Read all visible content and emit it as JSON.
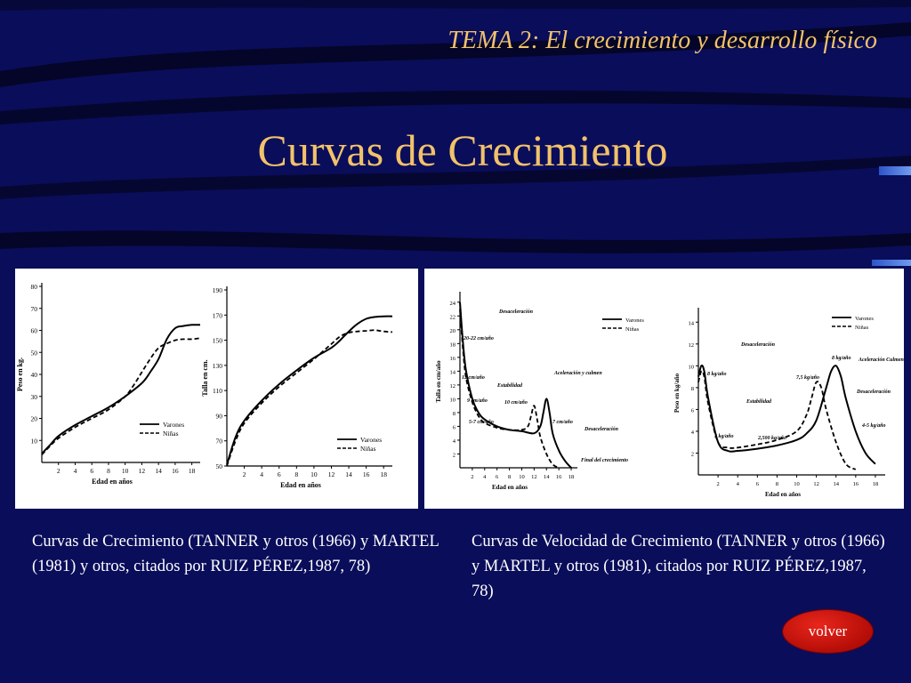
{
  "header": {
    "topic": "TEMA 2: El crecimiento y desarrollo físico",
    "title": "Curvas de Crecimiento"
  },
  "captions": {
    "left": "Curvas de Crecimiento (TANNER y otros (1966) y MARTEL (1981) y otros, citados por RUIZ PÉREZ,1987, 78)",
    "right": "Curvas de Velocidad de Crecimiento (TANNER y otros (1966) y MARTEL y otros (1981), citados por RUIZ PÉREZ,1987, 78)"
  },
  "nav": {
    "back_label": "volver"
  },
  "colors": {
    "background": "#0a0d5a",
    "title": "#f2c26a",
    "button": "#d0140c"
  },
  "chart_data": [
    {
      "type": "line",
      "id": "peso",
      "title": "",
      "xlabel": "Edad en años",
      "ylabel": "Peso en kg.",
      "xlim": [
        0,
        19
      ],
      "ylim": [
        0,
        80
      ],
      "xticks": [
        2,
        4,
        6,
        8,
        10,
        12,
        14,
        16,
        18
      ],
      "yticks": [
        10,
        20,
        30,
        40,
        50,
        60,
        70,
        80
      ],
      "legend": [
        "Varones",
        "Niñas"
      ],
      "annotations": [],
      "series": [
        {
          "name": "Varones",
          "style": "solid",
          "x": [
            0,
            1,
            2,
            4,
            6,
            8,
            10,
            12,
            13,
            14,
            15,
            16,
            17,
            18,
            19
          ],
          "y": [
            4,
            8,
            12,
            17,
            21,
            25,
            30,
            36,
            41,
            47,
            56,
            61,
            62,
            62.5,
            62.5
          ]
        },
        {
          "name": "Niñas",
          "style": "dashed",
          "x": [
            0,
            1,
            2,
            4,
            6,
            8,
            10,
            11,
            12,
            13,
            14,
            15,
            16,
            17,
            18,
            19
          ],
          "y": [
            3.5,
            7.5,
            11,
            16,
            20,
            24,
            30,
            35,
            41,
            47,
            52,
            54,
            55.5,
            56,
            56,
            56.5
          ]
        }
      ]
    },
    {
      "type": "line",
      "id": "talla",
      "title": "",
      "xlabel": "Edad en años",
      "ylabel": "Talla en cm.",
      "xlim": [
        0,
        19
      ],
      "ylim": [
        50,
        190
      ],
      "xticks": [
        2,
        4,
        6,
        8,
        10,
        12,
        14,
        16,
        18
      ],
      "yticks": [
        50,
        70,
        90,
        110,
        130,
        150,
        170,
        190
      ],
      "legend": [
        "Varones",
        "Niñas"
      ],
      "annotations": [],
      "series": [
        {
          "name": "Varones",
          "style": "solid",
          "x": [
            0,
            1,
            2,
            4,
            6,
            8,
            10,
            12,
            13,
            14,
            15,
            16,
            17,
            18,
            19
          ],
          "y": [
            51,
            73,
            86,
            102,
            115,
            126,
            136,
            144,
            150,
            157,
            163,
            167,
            168.5,
            169,
            169
          ]
        },
        {
          "name": "Niñas",
          "style": "dashed",
          "x": [
            0,
            1,
            2,
            4,
            6,
            8,
            10,
            11,
            12,
            13,
            14,
            15,
            16,
            17,
            18,
            19
          ],
          "y": [
            50,
            70,
            84,
            100,
            113,
            124,
            135,
            141,
            147,
            153,
            156,
            157,
            157.5,
            158,
            157,
            156.5
          ]
        }
      ]
    },
    {
      "type": "line",
      "id": "velocidad-talla",
      "title": "",
      "xlabel": "Edad en años",
      "ylabel": "Talla en cm/año",
      "xlim": [
        0,
        19
      ],
      "ylim": [
        0,
        25
      ],
      "xticks": [
        2,
        4,
        6,
        8,
        10,
        12,
        14,
        16,
        18
      ],
      "yticks": [
        2,
        4,
        6,
        8,
        10,
        12,
        14,
        16,
        18,
        20,
        22,
        24
      ],
      "legend": [
        "Varones",
        "Niñas"
      ],
      "annotations": [
        "Desaceleración",
        "20-22 cm/año",
        "12 cm/año",
        "Estabilidad",
        "9 cm/año",
        "10 cm/año",
        "Aceleración y culmen",
        "5-7 cm/año",
        "7 cm/año",
        "Desaceleración",
        "Final del crecimiento"
      ],
      "series": [
        {
          "name": "Varones",
          "style": "solid",
          "x": [
            0,
            0.5,
            1,
            2,
            3,
            4,
            6,
            8,
            10,
            12,
            13,
            13.5,
            14,
            14.5,
            15,
            16,
            17,
            18
          ],
          "y": [
            24,
            18,
            14,
            10,
            8,
            7,
            6,
            5.5,
            5.3,
            5,
            6,
            8,
            10,
            8,
            5,
            2.5,
            1,
            0
          ]
        },
        {
          "name": "Niñas",
          "style": "dashed",
          "x": [
            0,
            0.5,
            1,
            2,
            3,
            4,
            6,
            8,
            10,
            11,
            11.5,
            12,
            12.5,
            13,
            14,
            15,
            16
          ],
          "y": [
            23,
            17,
            13,
            9.5,
            7.5,
            6.5,
            5.8,
            5.5,
            5.5,
            6,
            7.5,
            9,
            7,
            4.5,
            2,
            0.5,
            0
          ]
        }
      ]
    },
    {
      "type": "line",
      "id": "velocidad-peso",
      "title": "",
      "xlabel": "Edad en años",
      "ylabel": "Peso en kg/año",
      "xlim": [
        0,
        19
      ],
      "ylim": [
        0,
        15
      ],
      "xticks": [
        2,
        4,
        6,
        8,
        10,
        12,
        14,
        16,
        18
      ],
      "yticks": [
        2,
        4,
        6,
        8,
        10,
        12,
        14
      ],
      "legend": [
        "Varones",
        "Niñas"
      ],
      "annotations": [
        "Desaceleración",
        "8 kg/año",
        "Estabilidad",
        "3 kg/año",
        "2,500 kg/año",
        "7,5 kg/año",
        "8 kg/año",
        "Aceleración Culmen",
        "Desaceleración",
        "4-5 kg/año"
      ],
      "series": [
        {
          "name": "Varones",
          "style": "solid",
          "x": [
            0,
            0.3,
            0.6,
            1,
            2,
            3,
            4,
            6,
            8,
            10,
            11,
            12,
            13,
            13.5,
            14,
            14.5,
            15,
            16,
            17,
            18
          ],
          "y": [
            9,
            10,
            9.5,
            7,
            3,
            2.2,
            2.2,
            2.4,
            2.7,
            3.2,
            3.8,
            5,
            8,
            9.5,
            10,
            9,
            7,
            4,
            2,
            1
          ]
        },
        {
          "name": "Niñas",
          "style": "dashed",
          "x": [
            0,
            0.3,
            0.6,
            1,
            2,
            3,
            4,
            6,
            8,
            10,
            11,
            11.5,
            12,
            12.5,
            13,
            14,
            15,
            16
          ],
          "y": [
            8.5,
            9.5,
            9,
            6.5,
            3,
            2.5,
            2.5,
            2.8,
            3.2,
            4,
            5.5,
            7,
            8.5,
            8,
            6,
            3,
            1,
            0.5
          ]
        }
      ]
    }
  ]
}
